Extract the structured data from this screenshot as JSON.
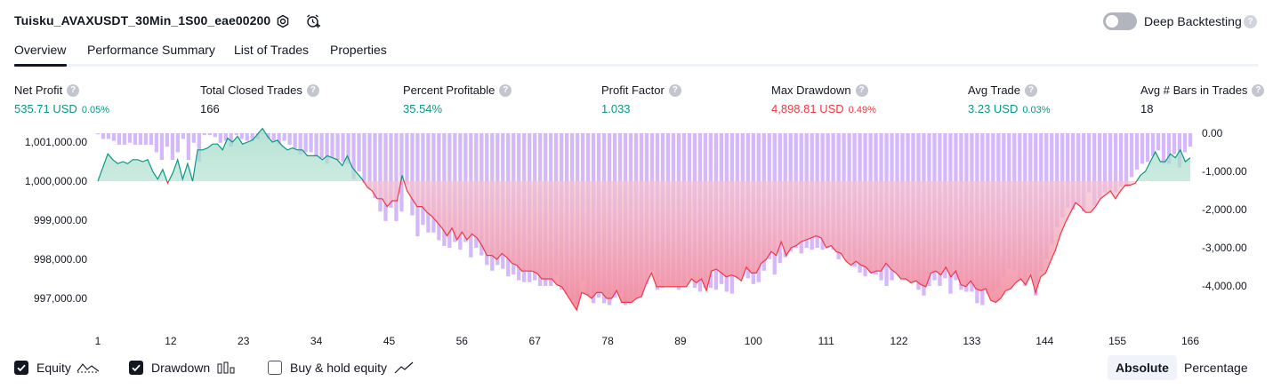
{
  "header": {
    "strategy_name": "Tuisku_AVAXUSDT_30Min_1S00_eae00200",
    "deep_backtesting_label": "Deep Backtesting",
    "deep_backtesting_enabled": false,
    "help_glyph": "?"
  },
  "tabs": [
    {
      "label": "Overview",
      "active": true
    },
    {
      "label": "Performance Summary",
      "active": false
    },
    {
      "label": "List of Trades",
      "active": false
    },
    {
      "label": "Properties",
      "active": false
    }
  ],
  "metrics": [
    {
      "label": "Net Profit",
      "value": "535.71 USD",
      "pct": "0.05%",
      "tone": "green"
    },
    {
      "label": "Total Closed Trades",
      "value": "166",
      "pct": "",
      "tone": "dark"
    },
    {
      "label": "Percent Profitable",
      "value": "35.54%",
      "pct": "",
      "tone": "green"
    },
    {
      "label": "Profit Factor",
      "value": "1.033",
      "pct": "",
      "tone": "green"
    },
    {
      "label": "Max Drawdown",
      "value": "4,898.81 USD",
      "pct": "0.49%",
      "tone": "red"
    },
    {
      "label": "Avg Trade",
      "value": "3.23 USD",
      "pct": "0.03%",
      "tone": "green"
    },
    {
      "label": "Avg # Bars in Trades",
      "value": "18",
      "pct": "",
      "tone": "dark"
    }
  ],
  "legend": {
    "equity_label": "Equity",
    "equity_checked": true,
    "drawdown_label": "Drawdown",
    "drawdown_checked": true,
    "buyhold_label": "Buy & hold equity",
    "buyhold_checked": false
  },
  "view_toggle": {
    "absolute_label": "Absolute",
    "percentage_label": "Percentage",
    "selected": "Absolute"
  },
  "colors": {
    "profit": "#089981",
    "loss": "#f23645",
    "drawdown_bar": "#c9a6f7",
    "equity_fill_top": "#9fd9c6",
    "loss_fill_bottom": "#f28a9c"
  },
  "chart_data": {
    "type": "area",
    "x_ticks": [
      "1",
      "12",
      "23",
      "34",
      "45",
      "56",
      "67",
      "78",
      "89",
      "100",
      "111",
      "122",
      "133",
      "144",
      "155",
      "166"
    ],
    "y_left_ticks": [
      "1,001,000.00",
      "1,000,000.00",
      "999,000.00",
      "998,000.00",
      "997,000.00"
    ],
    "y_right_ticks": [
      "0.00",
      "-1,000.00",
      "-2,000.00",
      "-3,000.00",
      "-4,000.00"
    ],
    "baseline": 1000000,
    "equity": [
      1000000,
      1000350,
      1000700,
      1000550,
      1000450,
      1000500,
      1000450,
      1000550,
      1000550,
      1000500,
      1000550,
      1000250,
      1000050,
      1000300,
      999950,
      1000200,
      1000550,
      1000050,
      1000450,
      1000000,
      1000800,
      1000800,
      1000850,
      1000950,
      1000950,
      1000800,
      1001100,
      1001000,
      1001150,
      1000950,
      1001000,
      1001050,
      1001200,
      1001350,
      1001150,
      1001000,
      1001050,
      1000900,
      1000800,
      1000850,
      1000800,
      1000800,
      1000650,
      1000650,
      1000650,
      1000550,
      1000650,
      1000600,
      1000550,
      1000400,
      1000650,
      1000350,
      1000200,
      1000050,
      999850,
      999750,
      999550,
      999550,
      999350,
      999500,
      999500,
      1000150,
      999750,
      999550,
      999350,
      999350,
      999200,
      999100,
      998950,
      998800,
      998600,
      998800,
      998500,
      998700,
      998500,
      998650,
      998550,
      998350,
      998100,
      998100,
      998000,
      998150,
      998050,
      997900,
      997850,
      997700,
      997700,
      997700,
      997650,
      997500,
      997500,
      997500,
      997350,
      997300,
      997100,
      996900,
      996700,
      997150,
      997100,
      997000,
      997150,
      997150,
      997000,
      997000,
      997200,
      996900,
      996900,
      996900,
      997000,
      997050,
      997400,
      997650,
      997300,
      997300,
      997300,
      997300,
      997300,
      997300,
      997300,
      997500,
      997400,
      997500,
      997200,
      997700,
      997750,
      997650,
      997550,
      997600,
      997550,
      997450,
      997800,
      997650,
      997650,
      997900,
      998000,
      998200,
      998100,
      998450,
      998100,
      998300,
      998350,
      998450,
      998500,
      998550,
      998600,
      998550,
      998300,
      998350,
      998200,
      998150,
      997950,
      997850,
      997950,
      997850,
      997800,
      997650,
      997700,
      997700,
      997900,
      997750,
      997650,
      997500,
      997500,
      997400,
      997450,
      997350,
      997300,
      997650,
      997700,
      997600,
      997800,
      997550,
      997700,
      997350,
      997300,
      997450,
      997250,
      997200,
      997250,
      996950,
      996900,
      997000,
      997200,
      997250,
      997400,
      997500,
      997350,
      997600,
      997150,
      997550,
      997650,
      997950,
      998250,
      998650,
      998950,
      999200,
      999450,
      999350,
      999200,
      999200,
      999350,
      999550,
      999650,
      999750,
      999550,
      999750,
      999900,
      999900,
      999950,
      1000150,
      1000250,
      1000500,
      1000750,
      1000500,
      1000500,
      1000700,
      1000600,
      1000800,
      1000500,
      1000600
    ],
    "drawdown": [
      0,
      -150,
      -150,
      -200,
      -300,
      -300,
      -250,
      -300,
      -300,
      -300,
      -300,
      -500,
      -700,
      -350,
      -700,
      -500,
      -150,
      -700,
      -250,
      -750,
      -50,
      -50,
      -100,
      -250,
      -200,
      -350,
      -50,
      -150,
      -200,
      -200,
      -150,
      0,
      -150,
      -200,
      -300,
      -200,
      -300,
      -400,
      -550,
      -500,
      -500,
      -600,
      -650,
      -800,
      -650,
      -700,
      -750,
      -800,
      -1200,
      -1000,
      -1300,
      -1450,
      -1700,
      -2050,
      -2300,
      -1950,
      -2300,
      -2050,
      -1350,
      -2150,
      -2700,
      -2400,
      -2600,
      -2600,
      -2800,
      -2950,
      -3000,
      -2850,
      -3050,
      -2850,
      -3250,
      -3000,
      -3200,
      -3450,
      -3600,
      -3450,
      -3550,
      -3750,
      -3700,
      -3850,
      -3900,
      -3900,
      -3850,
      -4000,
      -4000,
      -4000,
      -3700,
      -4100,
      -4200,
      -4350,
      -4400,
      -3850,
      -4250,
      -4450,
      -4300,
      -4450,
      -4500,
      -4300,
      -4200,
      -4500,
      -4350,
      -4300,
      -4200,
      -3950,
      -3600,
      -4100,
      -4050,
      -4000,
      -4000,
      -4100,
      -3950,
      -3750,
      -4050,
      -4150,
      -4050,
      -4050,
      -4100,
      -3950,
      -4150,
      -4200,
      -3800,
      -3750,
      -3800,
      -3950,
      -3900,
      -3600,
      -3300,
      -3700,
      -3400,
      -3250,
      -3100,
      -3000,
      -3150,
      -3000,
      -3050,
      -3000,
      -3050,
      -3000,
      -3050,
      -3300,
      -3200,
      -3350,
      -3500,
      -3650,
      -3750,
      -3650,
      -3700,
      -3850,
      -4000,
      -3850,
      -3650,
      -3800,
      -3850,
      -3900,
      -4100,
      -4250,
      -4000,
      -3850,
      -4000,
      -3800,
      -4200,
      -3850,
      -4100,
      -4150,
      -4150,
      -4450,
      -4500,
      -4200,
      -4150,
      -4050,
      -3750,
      -3550,
      -3600,
      -3800,
      -4000,
      -3650,
      -4250,
      -3600,
      -3300,
      -2900,
      -2450,
      -2200,
      -1950,
      -2000,
      -1850,
      -2050,
      -1550,
      -1900,
      -1700,
      -1550,
      -1500,
      -1550,
      -1400,
      -1400,
      -1150,
      -950,
      -800,
      -750,
      -600,
      -450,
      -800,
      -800,
      -550,
      -900,
      -500,
      -350
    ]
  }
}
